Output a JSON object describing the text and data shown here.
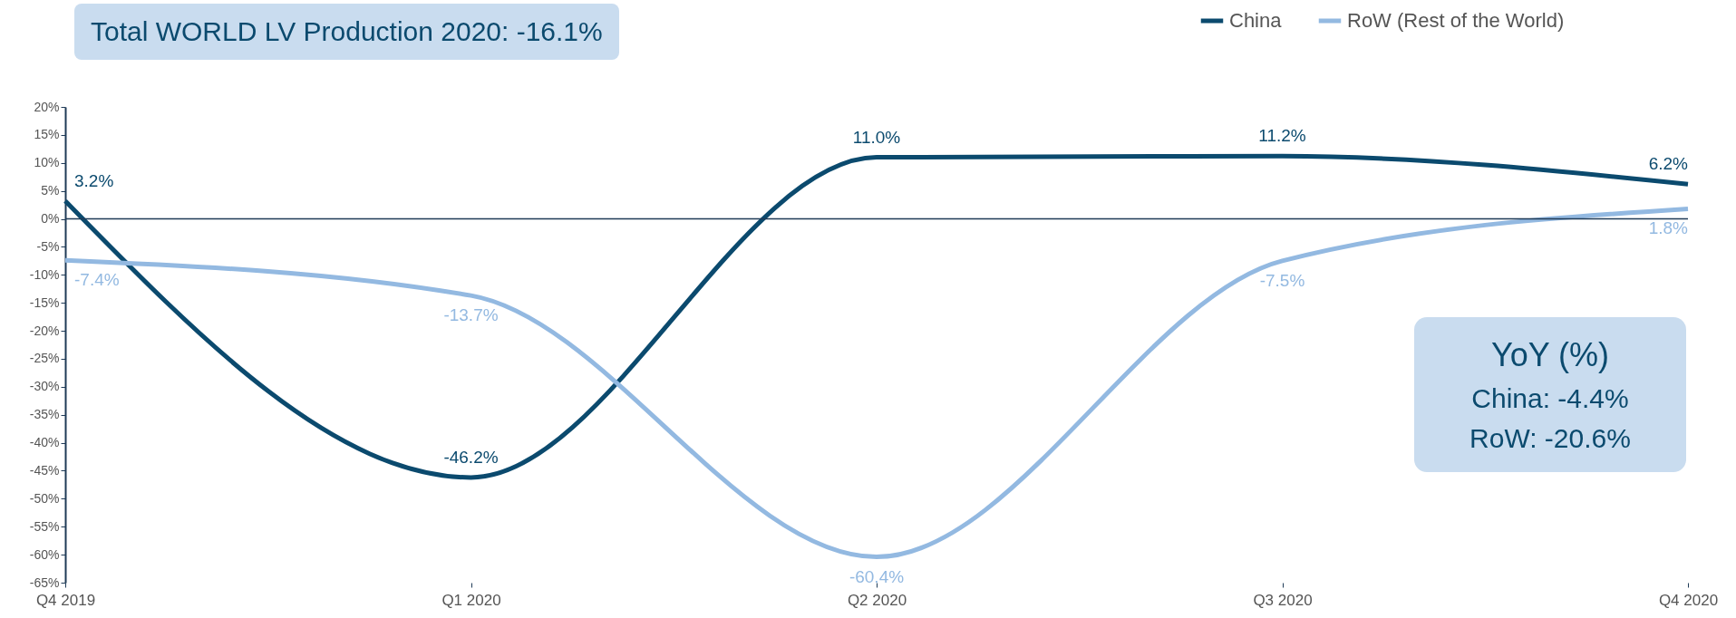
{
  "chart_data": {
    "type": "line",
    "title": "Total WORLD LV Production 2020: -16.1%",
    "categories": [
      "Q4 2019",
      "Q1 2020",
      "Q2 2020",
      "Q3 2020",
      "Q4 2020"
    ],
    "series": [
      {
        "name": "China",
        "color": "#0b4a6e",
        "values": [
          3.2,
          -46.2,
          11.0,
          11.2,
          6.2
        ],
        "value_labels": [
          "3.2%",
          "-46.2%",
          "11.0%",
          "11.2%",
          "6.2%"
        ]
      },
      {
        "name": "RoW (Rest of the World)",
        "color": "#93b9e1",
        "values": [
          -7.4,
          -13.7,
          -60.4,
          -7.5,
          1.8
        ],
        "value_labels": [
          "-7.4%",
          "-13.7%",
          "-60.4%",
          "-7.5%",
          "1.8%"
        ]
      }
    ],
    "ylim": [
      -65,
      20
    ],
    "yticks": [
      {
        "value": -65,
        "label": "-65%"
      },
      {
        "value": -60,
        "label": "-60%"
      },
      {
        "value": -55,
        "label": "-55%"
      },
      {
        "value": -50,
        "label": "-50%"
      },
      {
        "value": -45,
        "label": "-45%"
      },
      {
        "value": -40,
        "label": "-40%"
      },
      {
        "value": -35,
        "label": "-35%"
      },
      {
        "value": -30,
        "label": "-30%"
      },
      {
        "value": -25,
        "label": "-25%"
      },
      {
        "value": -20,
        "label": "-20%"
      },
      {
        "value": -15,
        "label": "-15%"
      },
      {
        "value": -10,
        "label": "-10%"
      },
      {
        "value": -5,
        "label": "-5%"
      },
      {
        "value": 0,
        "label": "0%"
      },
      {
        "value": 5,
        "label": "5%"
      },
      {
        "value": 10,
        "label": "10%"
      },
      {
        "value": 15,
        "label": "15%"
      },
      {
        "value": 20,
        "label": "20%"
      }
    ],
    "ref_lines": [
      {
        "axis": "y",
        "value": 0,
        "color": "#1f3b57"
      }
    ],
    "annotations": [
      "YoY (%)",
      "China: -4.4%",
      "RoW: -20.6%"
    ],
    "legend": "top right",
    "grid": false,
    "marker": "none",
    "line_style": "solid"
  }
}
